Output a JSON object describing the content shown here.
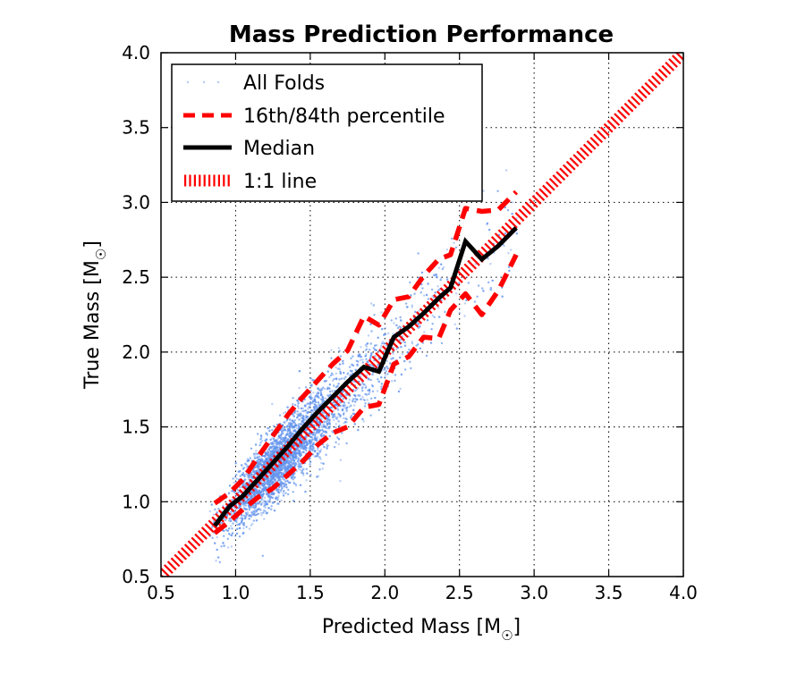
{
  "chart_data": {
    "type": "scatter",
    "title": "Mass Prediction Performance",
    "xlabel": "Predicted Mass [M",
    "ylabel": "True Mass [M",
    "unit_symbol": "☉",
    "xlabel_close": "]",
    "ylabel_close": "]",
    "xlim": [
      0.5,
      4.0
    ],
    "ylim": [
      0.5,
      4.0
    ],
    "xticks": [
      "0.5",
      "1.0",
      "1.5",
      "2.0",
      "2.5",
      "3.0",
      "3.5",
      "4.0"
    ],
    "yticks": [
      "0.5",
      "1.0",
      "1.5",
      "2.0",
      "2.5",
      "3.0",
      "3.5",
      "4.0"
    ],
    "grid": true,
    "legend_position": "top-left",
    "legend": [
      {
        "label": "All Folds",
        "style": "scatter"
      },
      {
        "label": "16th/84th percentile",
        "style": "dashed"
      },
      {
        "label": "Median",
        "style": "solid"
      },
      {
        "label": "1:1 line",
        "style": "hatched"
      }
    ],
    "scatter_cloud": {
      "name": "All Folds",
      "approx_count": 6500,
      "center": [
        1.25,
        1.2
      ],
      "note": "dense cloud concentrated near 1.0-1.5 with sparse points extending to ~3.0"
    },
    "series": [
      {
        "name": "Median",
        "x": [
          0.86,
          0.96,
          1.05,
          1.15,
          1.25,
          1.35,
          1.45,
          1.55,
          1.65,
          1.75,
          1.86,
          1.96,
          2.06,
          2.16,
          2.26,
          2.36,
          2.44,
          2.54,
          2.65,
          2.76,
          2.88
        ],
        "y": [
          0.84,
          0.97,
          1.04,
          1.15,
          1.26,
          1.37,
          1.49,
          1.6,
          1.7,
          1.8,
          1.9,
          1.87,
          2.1,
          2.17,
          2.26,
          2.36,
          2.43,
          2.74,
          2.62,
          2.71,
          2.83
        ]
      },
      {
        "name": "84th percentile",
        "x": [
          0.86,
          0.96,
          1.05,
          1.15,
          1.25,
          1.35,
          1.45,
          1.55,
          1.65,
          1.75,
          1.86,
          1.96,
          2.06,
          2.16,
          2.26,
          2.36,
          2.44,
          2.54,
          2.65,
          2.76,
          2.88
        ],
        "y": [
          0.99,
          1.06,
          1.15,
          1.3,
          1.44,
          1.58,
          1.7,
          1.81,
          1.92,
          2.01,
          2.24,
          2.18,
          2.35,
          2.37,
          2.51,
          2.62,
          2.65,
          2.96,
          2.94,
          2.95,
          3.07
        ]
      },
      {
        "name": "16th percentile",
        "x": [
          0.86,
          0.96,
          1.05,
          1.15,
          1.25,
          1.35,
          1.45,
          1.55,
          1.65,
          1.75,
          1.86,
          1.96,
          2.06,
          2.16,
          2.26,
          2.36,
          2.44,
          2.54,
          2.65,
          2.76,
          2.88
        ],
        "y": [
          0.79,
          0.87,
          0.95,
          1.03,
          1.09,
          1.18,
          1.27,
          1.38,
          1.46,
          1.5,
          1.63,
          1.65,
          1.92,
          1.97,
          2.1,
          2.09,
          2.28,
          2.39,
          2.25,
          2.41,
          2.65
        ]
      },
      {
        "name": "1:1 line",
        "x": [
          0.5,
          4.0
        ],
        "y": [
          0.5,
          4.0
        ]
      }
    ],
    "colors": {
      "scatter": "#6495ed",
      "percentile": "#ff0000",
      "median": "#000000",
      "one_to_one": "#ff0000"
    }
  }
}
